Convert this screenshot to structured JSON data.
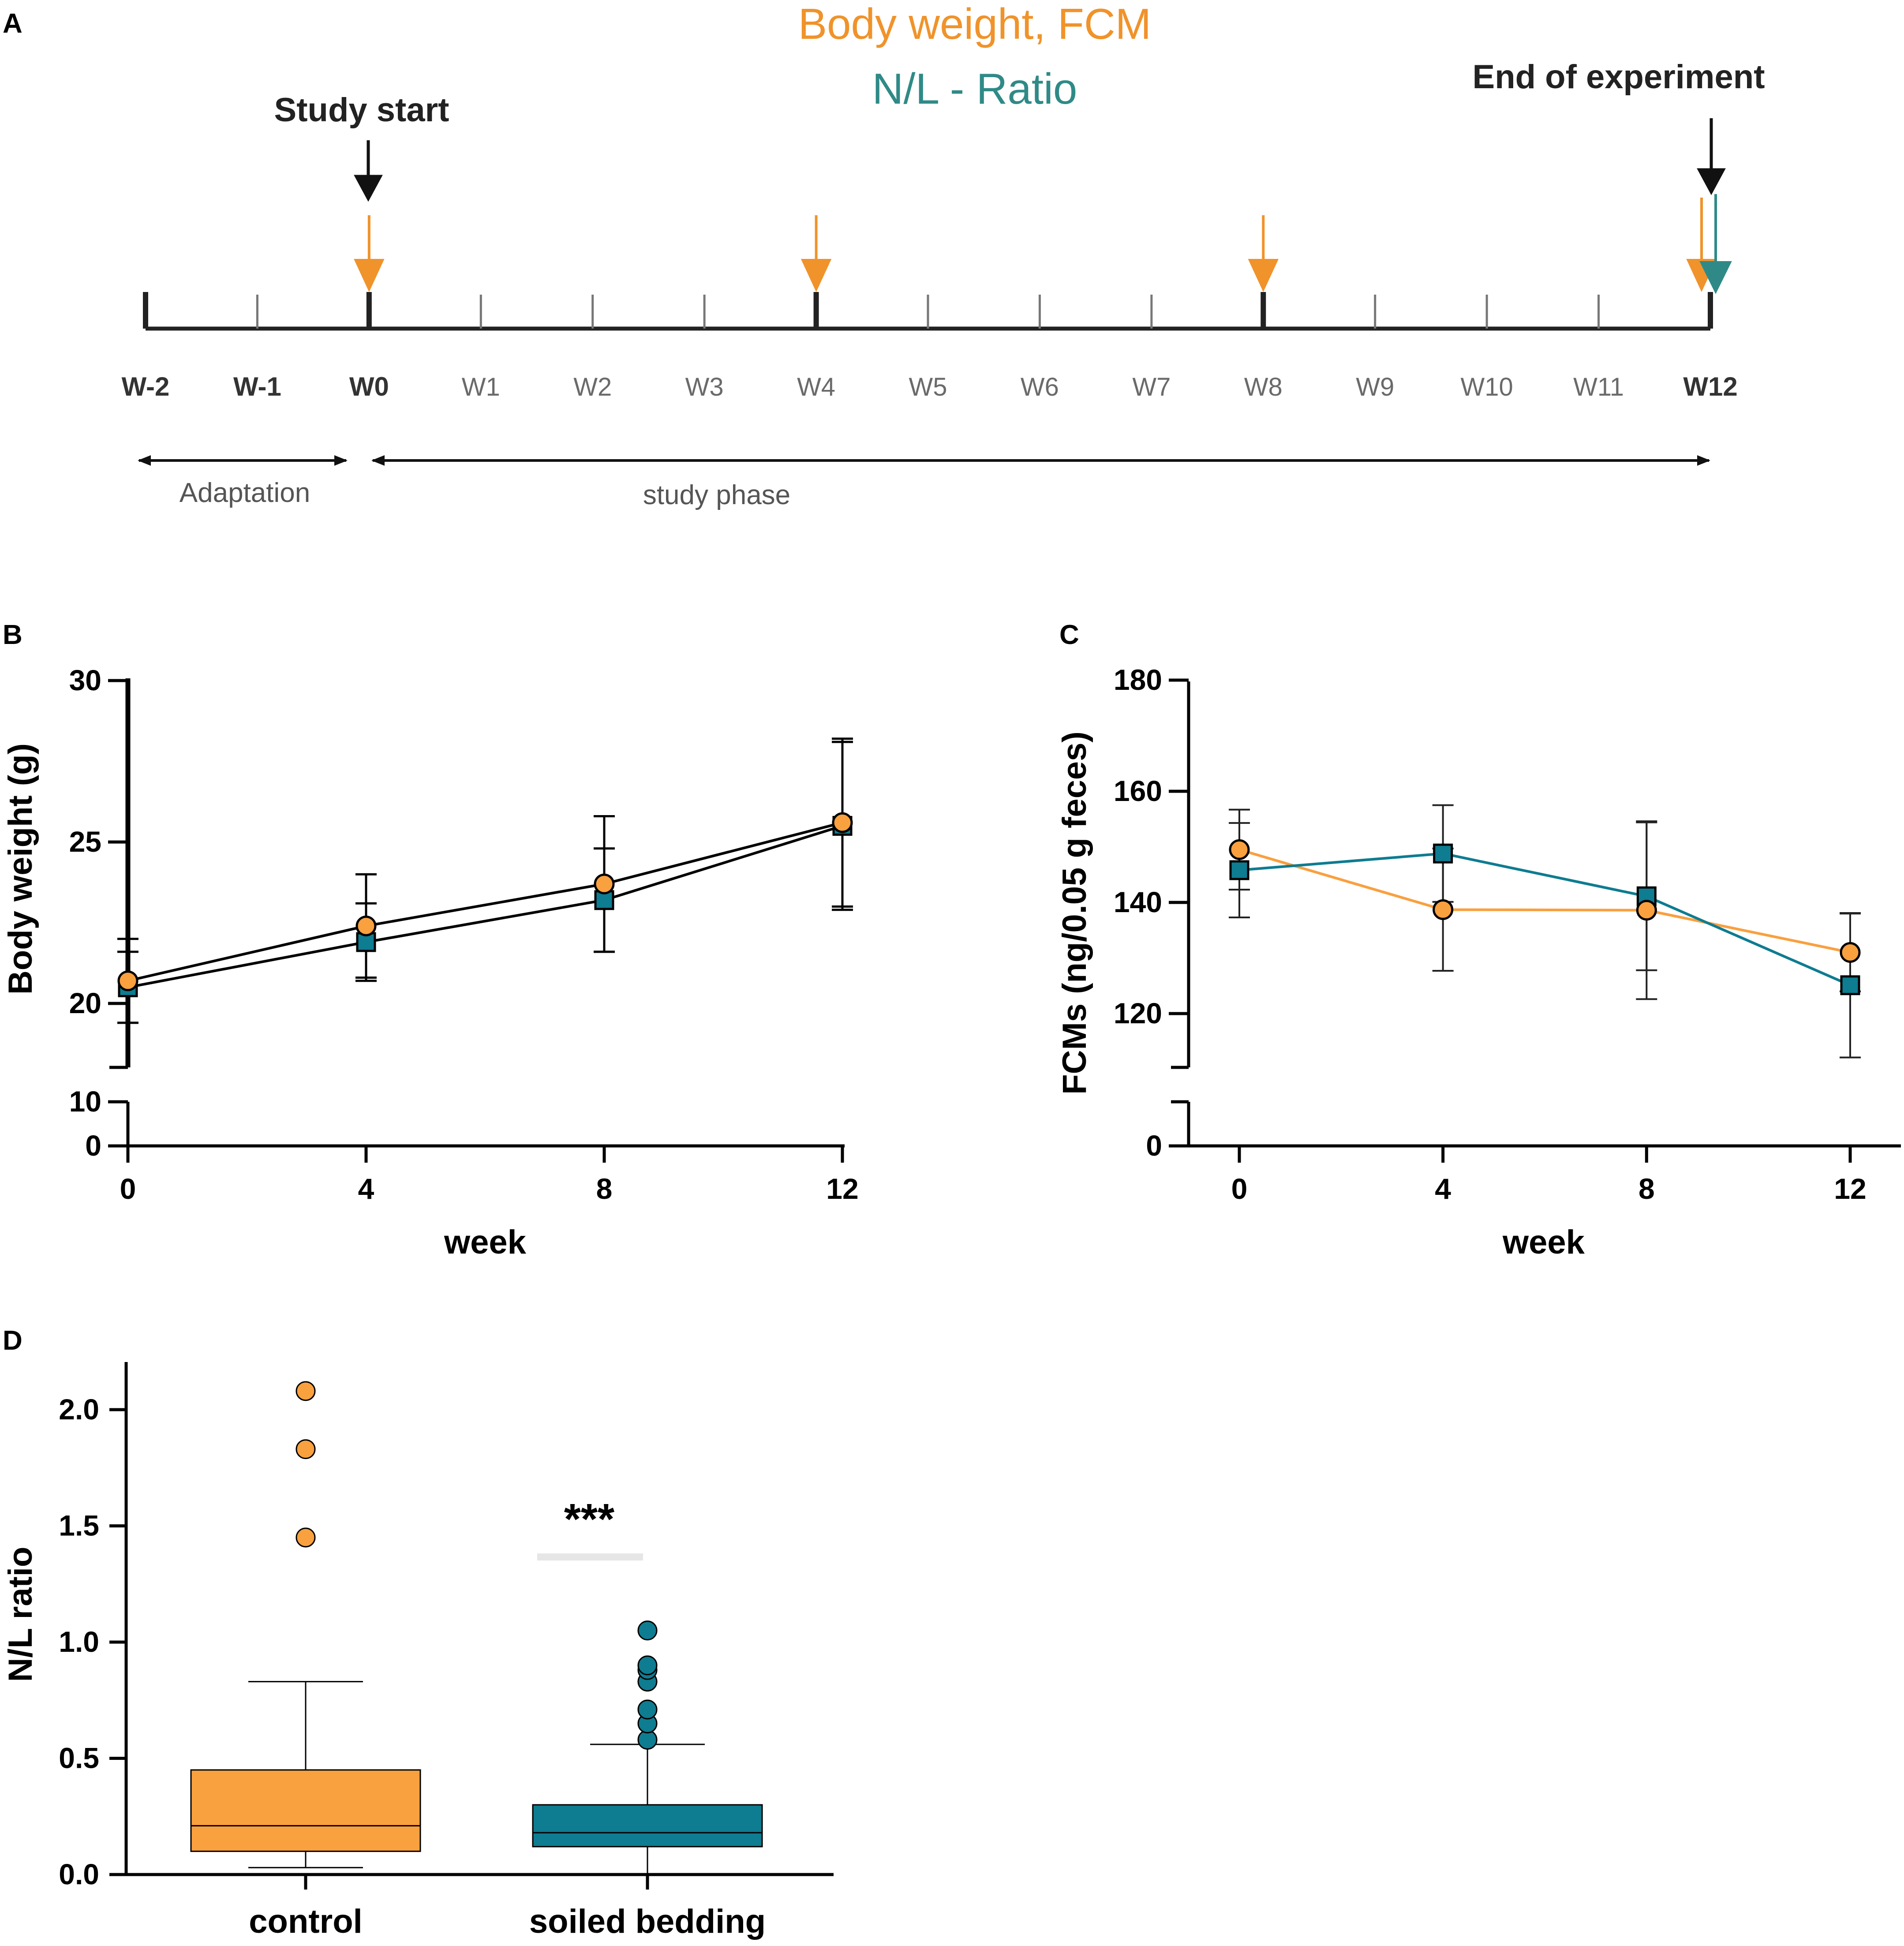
{
  "colors": {
    "orange": "#F9A03F",
    "teal": "#0E7C91",
    "teal_arrow": "#2F8A87",
    "orange_arrow": "#F0932A",
    "black": "#000000"
  },
  "panel_labels": [
    "A",
    "B",
    "C",
    "D"
  ],
  "timeline": {
    "legend_fcm": "Body weight, FCM",
    "legend_nl": "N/L - Ratio",
    "study_start": "Study start",
    "end_experiment": "End of experiment",
    "weeks": [
      {
        "label": "W-2",
        "bold": true
      },
      {
        "label": "W-1",
        "bold": true
      },
      {
        "label": "W0",
        "bold": true
      },
      {
        "label": "W1",
        "bold": false
      },
      {
        "label": "W2",
        "bold": false
      },
      {
        "label": "W3",
        "bold": false
      },
      {
        "label": "W4",
        "bold": false
      },
      {
        "label": "W5",
        "bold": false
      },
      {
        "label": "W6",
        "bold": false
      },
      {
        "label": "W7",
        "bold": false
      },
      {
        "label": "W8",
        "bold": false
      },
      {
        "label": "W9",
        "bold": false
      },
      {
        "label": "W10",
        "bold": false
      },
      {
        "label": "W11",
        "bold": false
      },
      {
        "label": "W12",
        "bold": true
      }
    ],
    "sampling_weeks": [
      "W0",
      "W4",
      "W8",
      "W12"
    ],
    "nl_weeks": [
      "W12"
    ],
    "phase_adaptation": "Adaptation",
    "phase_study": "study phase"
  },
  "chart_data": [
    {
      "panel": "B",
      "type": "line",
      "xlabel": "week",
      "ylabel": "Body weight (g)",
      "x": [
        0,
        4,
        8,
        12
      ],
      "xticks": [
        "0",
        "4",
        "8",
        "12"
      ],
      "ylim": [
        0,
        30
      ],
      "y_axis_break": [
        10,
        18.8
      ],
      "yticks_upper": [
        "20",
        "25",
        "30"
      ],
      "yticks_lower": [
        "0",
        "10"
      ],
      "series": [
        {
          "name": "control",
          "marker": "circle",
          "color": "#F9A03F",
          "line_color": "#000000",
          "values": [
            20.7,
            22.4,
            23.7,
            25.6
          ],
          "err": [
            1.3,
            1.6,
            2.1,
            2.6
          ]
        },
        {
          "name": "soiled bedding",
          "marker": "square",
          "color": "#0E7C91",
          "line_color": "#000000",
          "values": [
            20.5,
            21.9,
            23.2,
            25.5
          ],
          "err": [
            1.1,
            1.2,
            1.6,
            2.6
          ]
        }
      ]
    },
    {
      "panel": "C",
      "type": "line",
      "xlabel": "week",
      "ylabel": "FCMs (ng/0.05 g feces)",
      "x": [
        0,
        4,
        8,
        12
      ],
      "xticks": [
        "0",
        "4",
        "8",
        "12"
      ],
      "ylim": [
        0,
        180
      ],
      "y_axis_break": [
        10,
        110
      ],
      "yticks_upper": [
        "120",
        "140",
        "160",
        "180"
      ],
      "yticks_lower": [
        "0"
      ],
      "series": [
        {
          "name": "control",
          "marker": "circle",
          "color": "#F9A03F",
          "line_color": "#F9A03F",
          "values": [
            149.5,
            138.7,
            138.6,
            131.0
          ],
          "err": [
            7.2,
            11.0,
            16.0,
            7.0
          ]
        },
        {
          "name": "soiled bedding",
          "marker": "square",
          "color": "#0E7C91",
          "line_color": "#0E7C91",
          "values": [
            145.8,
            148.8,
            141.1,
            125.1
          ],
          "err": [
            8.5,
            8.7,
            13.3,
            13.0
          ]
        }
      ]
    },
    {
      "panel": "D",
      "type": "box",
      "ylabel": "N/L ratio",
      "ylim": [
        0,
        2.2
      ],
      "yticks": [
        "0.0",
        "0.5",
        "1.0",
        "1.5",
        "2.0"
      ],
      "categories": [
        "control",
        "soiled bedding"
      ],
      "series": [
        {
          "name": "control",
          "color": "#F9A03F",
          "whisker_low": 0.03,
          "q1": 0.1,
          "median": 0.21,
          "q3": 0.45,
          "whisker_high": 0.83,
          "outliers": [
            1.45,
            1.83,
            2.08
          ]
        },
        {
          "name": "soiled bedding",
          "color": "#0E7C91",
          "whisker_low": 0.0,
          "q1": 0.12,
          "median": 0.18,
          "q3": 0.3,
          "whisker_high": 0.56,
          "outliers": [
            0.58,
            0.65,
            0.71,
            0.83,
            0.88,
            0.9,
            1.05
          ]
        }
      ],
      "significance": "***"
    }
  ]
}
